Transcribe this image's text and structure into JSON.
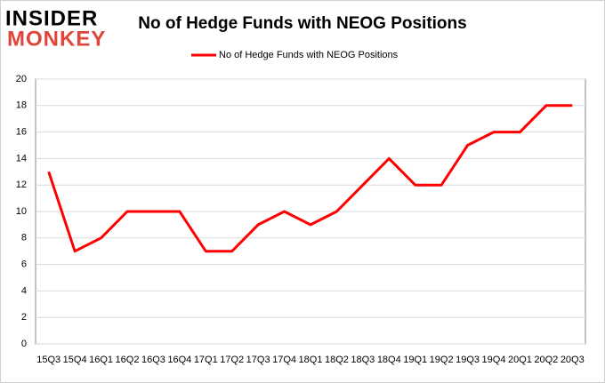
{
  "logo": {
    "line1": "INSIDER",
    "line2": "MONKEY"
  },
  "chart_data": {
    "type": "line",
    "title": "No of Hedge Funds with NEOG Positions",
    "categories": [
      "15Q3",
      "15Q4",
      "16Q1",
      "16Q2",
      "16Q3",
      "16Q4",
      "17Q1",
      "17Q2",
      "17Q3",
      "17Q4",
      "18Q1",
      "18Q2",
      "18Q3",
      "18Q4",
      "19Q1",
      "19Q2",
      "19Q3",
      "19Q4",
      "20Q1",
      "20Q2",
      "20Q3"
    ],
    "series": [
      {
        "name": "No of Hedge Funds with NEOG Positions",
        "color": "#ff0000",
        "values": [
          13,
          7,
          8,
          10,
          10,
          10,
          7,
          7,
          9,
          10,
          9,
          10,
          12,
          14,
          12,
          12,
          15,
          16,
          16,
          18,
          18
        ]
      }
    ],
    "ylim": [
      0,
      20
    ],
    "yticks": [
      0,
      2,
      4,
      6,
      8,
      10,
      12,
      14,
      16,
      18,
      20
    ],
    "grid": true,
    "legend": "top"
  }
}
